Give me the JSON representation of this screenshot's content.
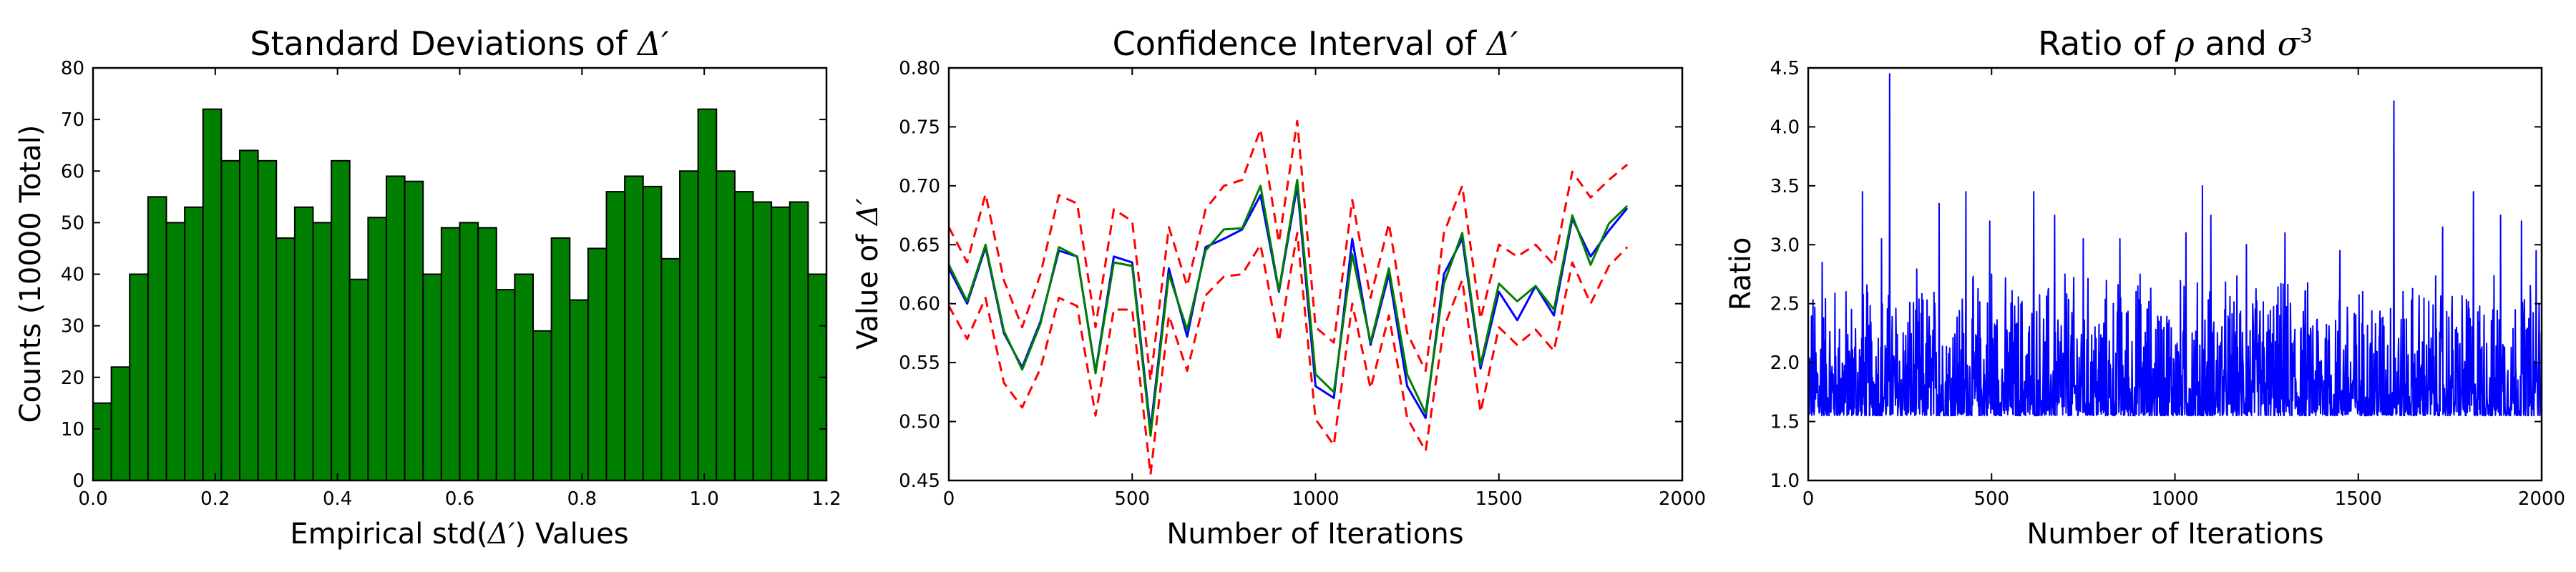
{
  "colors": {
    "green": "#007f00",
    "blue": "#0000ff",
    "red": "#ff0000",
    "edge": "#000000"
  },
  "chart_data": [
    {
      "type": "bar",
      "title_main": "Standard Deviations of ",
      "title_math": "Δ′",
      "xlabel_main": "Empirical std(",
      "xlabel_math": "Δ′",
      "xlabel_end": ") Values",
      "ylabel": "Counts (10000 Total)",
      "xlim": [
        0,
        1.2
      ],
      "ylim": [
        0,
        80
      ],
      "xticks": [
        "0.0",
        "0.2",
        "0.4",
        "0.6",
        "0.8",
        "1.0",
        "1.2"
      ],
      "yticks": [
        "0",
        "10",
        "20",
        "30",
        "40",
        "50",
        "60",
        "70",
        "80"
      ],
      "bin_width": 0.03,
      "bin_start": 0.0,
      "values": [
        15,
        22,
        40,
        55,
        50,
        53,
        72,
        62,
        64,
        62,
        47,
        53,
        50,
        62,
        39,
        51,
        59,
        58,
        40,
        49,
        50,
        49,
        37,
        40,
        29,
        47,
        35,
        45,
        56,
        59,
        57,
        43,
        60,
        72,
        60,
        56,
        54,
        53,
        54,
        40
      ],
      "grid": false
    },
    {
      "type": "line",
      "title_main": "Confidence Interval of ",
      "title_math": "Δ′",
      "xlabel": "Number of Iterations",
      "ylabel_main": "Value of ",
      "ylabel_math": "Δ′",
      "xlim": [
        0,
        2000
      ],
      "ylim": [
        0.45,
        0.8
      ],
      "xticks": [
        "0",
        "500",
        "1000",
        "1500",
        "2000"
      ],
      "yticks": [
        "0.45",
        "0.50",
        "0.55",
        "0.60",
        "0.65",
        "0.70",
        "0.75",
        "0.80"
      ],
      "x": [
        0,
        50,
        100,
        150,
        200,
        250,
        300,
        350,
        400,
        450,
        500,
        550,
        600,
        650,
        700,
        750,
        800,
        850,
        900,
        950,
        1000,
        1050,
        1100,
        1150,
        1200,
        1250,
        1300,
        1350,
        1400,
        1450,
        1500,
        1550,
        1600,
        1650,
        1700,
        1750,
        1800,
        1850
      ],
      "series": [
        {
          "color": "blue",
          "style": "solid",
          "values": [
            0.63,
            0.6,
            0.648,
            0.575,
            0.546,
            0.585,
            0.645,
            0.64,
            0.542,
            0.64,
            0.635,
            0.493,
            0.63,
            0.572,
            0.648,
            0.655,
            0.663,
            0.692,
            0.61,
            0.7,
            0.53,
            0.52,
            0.655,
            0.565,
            0.625,
            0.53,
            0.503,
            0.625,
            0.655,
            0.545,
            0.61,
            0.586,
            0.615,
            0.59,
            0.672,
            0.64,
            0.662,
            0.681
          ]
        },
        {
          "color": "green",
          "style": "solid",
          "values": [
            0.633,
            0.602,
            0.65,
            0.577,
            0.544,
            0.583,
            0.648,
            0.64,
            0.541,
            0.635,
            0.632,
            0.488,
            0.625,
            0.578,
            0.645,
            0.663,
            0.664,
            0.7,
            0.611,
            0.705,
            0.54,
            0.525,
            0.642,
            0.567,
            0.63,
            0.54,
            0.507,
            0.617,
            0.66,
            0.548,
            0.617,
            0.602,
            0.615,
            0.595,
            0.675,
            0.633,
            0.668,
            0.683
          ]
        },
        {
          "color": "red",
          "style": "dashed",
          "values": [
            0.665,
            0.635,
            0.693,
            0.62,
            0.58,
            0.625,
            0.692,
            0.685,
            0.58,
            0.68,
            0.67,
            0.535,
            0.665,
            0.615,
            0.68,
            0.7,
            0.705,
            0.748,
            0.652,
            0.755,
            0.58,
            0.567,
            0.688,
            0.605,
            0.668,
            0.575,
            0.543,
            0.66,
            0.7,
            0.587,
            0.65,
            0.64,
            0.65,
            0.633,
            0.712,
            0.69,
            0.705,
            0.718
          ]
        },
        {
          "color": "red",
          "style": "dashed",
          "values": [
            0.598,
            0.57,
            0.605,
            0.533,
            0.512,
            0.545,
            0.605,
            0.598,
            0.505,
            0.595,
            0.595,
            0.455,
            0.59,
            0.543,
            0.607,
            0.623,
            0.625,
            0.65,
            0.568,
            0.66,
            0.502,
            0.48,
            0.6,
            0.528,
            0.59,
            0.503,
            0.475,
            0.58,
            0.62,
            0.508,
            0.58,
            0.565,
            0.578,
            0.56,
            0.635,
            0.6,
            0.632,
            0.648
          ]
        }
      ],
      "grid": false
    },
    {
      "type": "line",
      "title_main": "Ratio of ",
      "title_rho": "ρ",
      "title_and": " and ",
      "title_sigma": "σ",
      "title_exp": "3",
      "xlabel": "Number of Iterations",
      "ylabel": "Ratio",
      "xlim": [
        0,
        2000
      ],
      "ylim": [
        1.0,
        4.5
      ],
      "xticks": [
        "0",
        "500",
        "1000",
        "1500",
        "2000"
      ],
      "yticks": [
        "1.0",
        "1.5",
        "2.0",
        "2.5",
        "3.0",
        "3.5",
        "4.0",
        "4.5"
      ],
      "series": [
        {
          "color": "blue",
          "style": "solid",
          "n_points": 2000,
          "baseline": 1.55,
          "noise_max": 1.3,
          "seed": 12345,
          "spikes": [
            [
              38,
              2.85
            ],
            [
              148,
              3.45
            ],
            [
              200,
              3.05
            ],
            [
              222,
              4.45
            ],
            [
              357,
              3.35
            ],
            [
              430,
              3.45
            ],
            [
              495,
              3.2
            ],
            [
              500,
              2.75
            ],
            [
              615,
              3.45
            ],
            [
              672,
              3.25
            ],
            [
              700,
              2.75
            ],
            [
              750,
              3.05
            ],
            [
              850,
              3.05
            ],
            [
              905,
              2.75
            ],
            [
              1030,
              3.1
            ],
            [
              1075,
              3.5
            ],
            [
              1098,
              3.25
            ],
            [
              1195,
              3.0
            ],
            [
              1300,
              3.1
            ],
            [
              1450,
              2.95
            ],
            [
              1597,
              4.22
            ],
            [
              1730,
              3.15
            ],
            [
              1814,
              3.45
            ],
            [
              1888,
              3.25
            ],
            [
              1945,
              3.2
            ],
            [
              1985,
              2.95
            ]
          ]
        }
      ],
      "grid": false
    }
  ]
}
